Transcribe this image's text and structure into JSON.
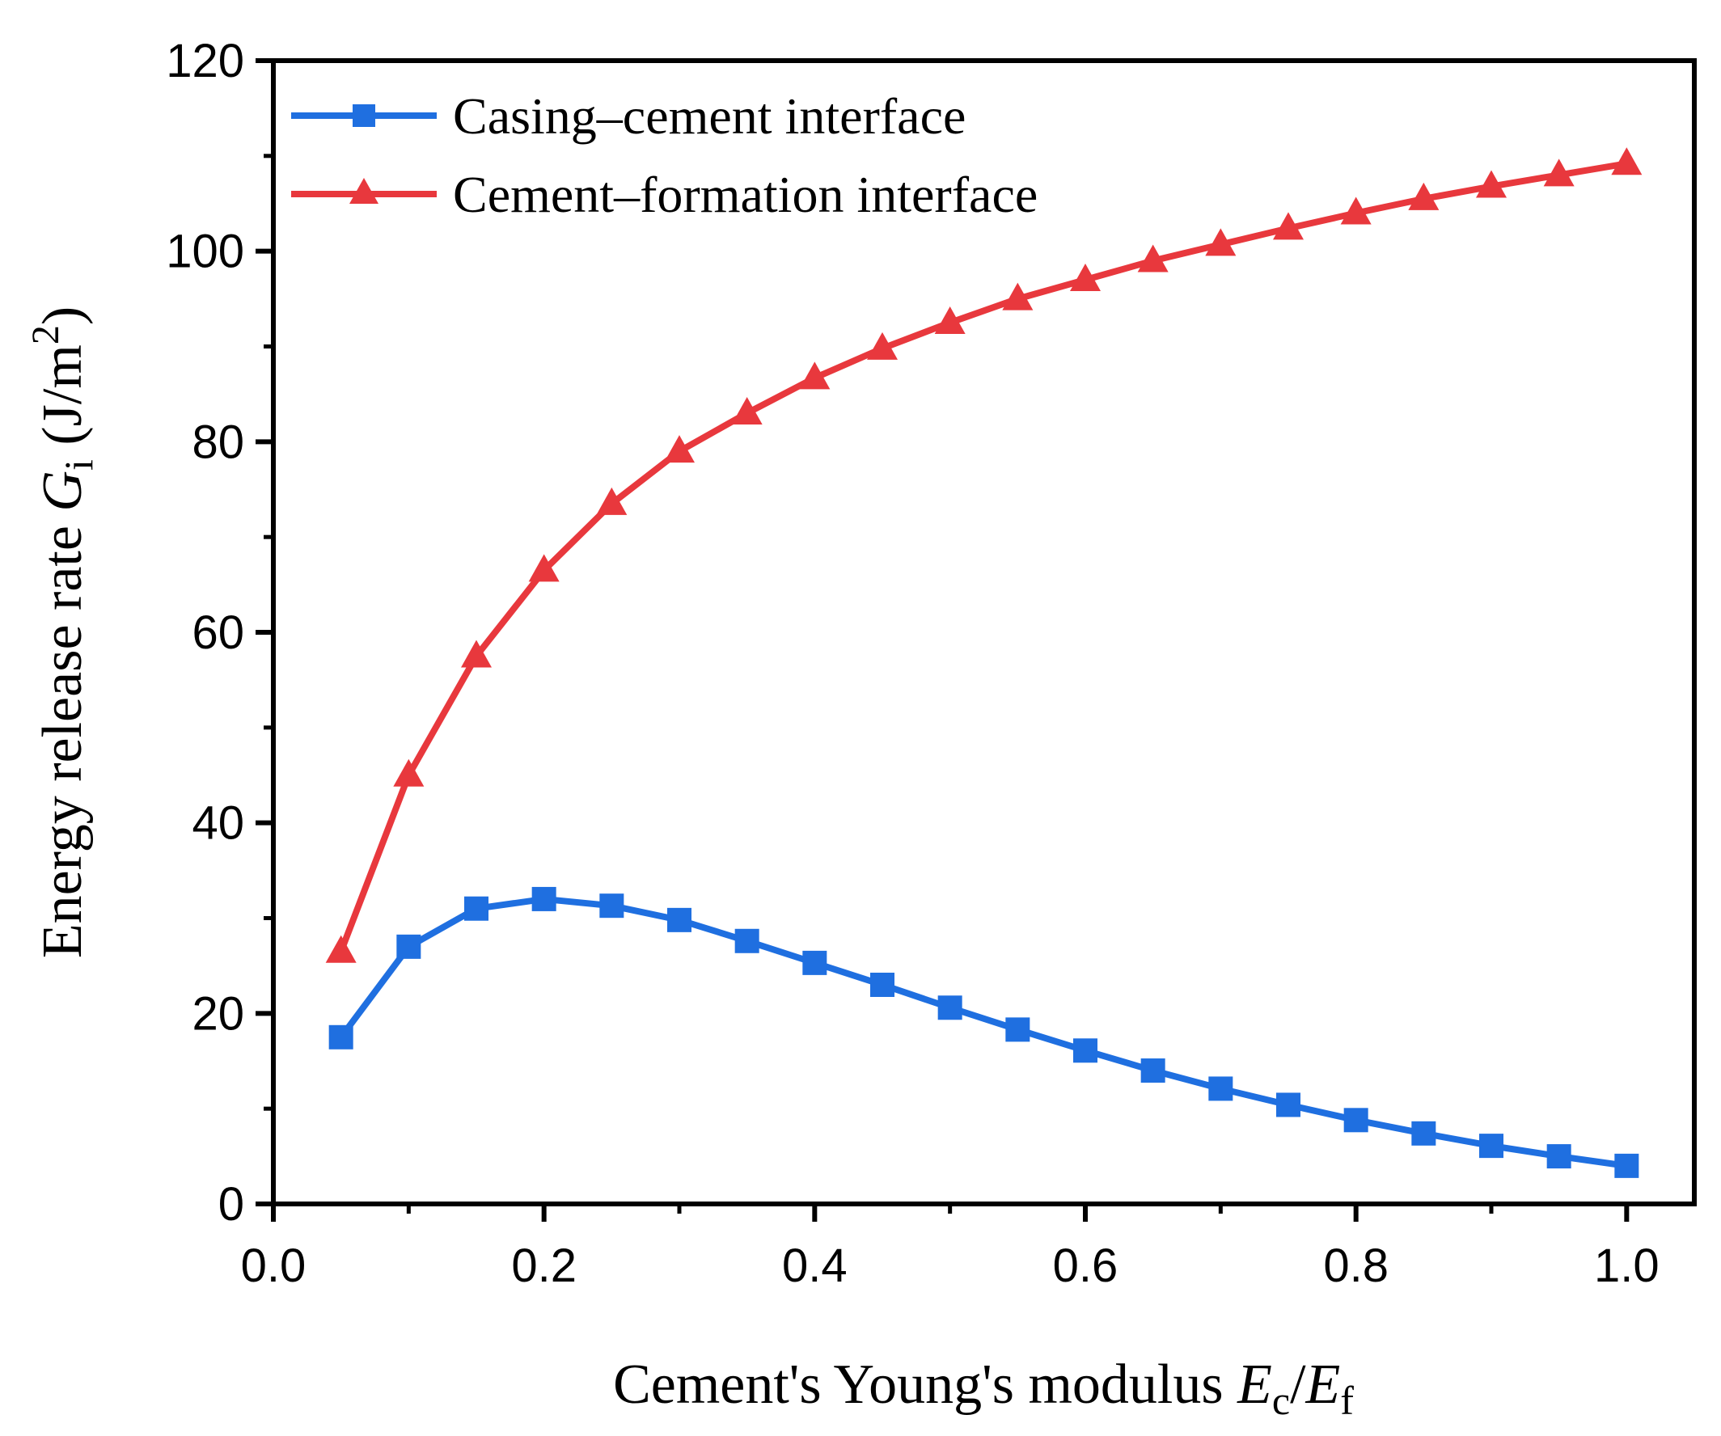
{
  "chart_data": {
    "type": "line",
    "title": "",
    "xlabel": {
      "text": "Cement's Young's modulus ",
      "var1": "E",
      "sub1": "c",
      "sep": "/",
      "var2": "E",
      "sub2": "f"
    },
    "ylabel": {
      "text": "Energy release rate ",
      "var": "G",
      "sub": "i",
      "unit_open": " (J/m",
      "sup": "2",
      "unit_close": ")"
    },
    "xlim": [
      0.0,
      1.05
    ],
    "ylim": [
      0,
      120
    ],
    "xticks": [
      "0.0",
      "0.2",
      "0.4",
      "0.6",
      "0.8",
      "1.0"
    ],
    "yticks": [
      "0",
      "20",
      "40",
      "60",
      "80",
      "100",
      "120"
    ],
    "grid": false,
    "legend_position": "top-left",
    "x": [
      0.05,
      0.1,
      0.15,
      0.2,
      0.25,
      0.3,
      0.35,
      0.4,
      0.45,
      0.5,
      0.55,
      0.6,
      0.65,
      0.7,
      0.75,
      0.8,
      0.85,
      0.9,
      0.95,
      1.0
    ],
    "series": [
      {
        "name": "Casing–cement interface",
        "color": "#1f6fe0",
        "marker": "square",
        "values": [
          17.5,
          27.0,
          31.0,
          32.0,
          31.3,
          29.8,
          27.6,
          25.3,
          23.0,
          20.6,
          18.3,
          16.1,
          14.0,
          12.1,
          10.4,
          8.8,
          7.4,
          6.1,
          5.0,
          4.0
        ]
      },
      {
        "name": "Cement–formation interface",
        "color": "#e8383d",
        "marker": "triangle",
        "values": [
          26.5,
          45.0,
          57.5,
          66.5,
          73.5,
          79.0,
          83.0,
          86.7,
          89.8,
          92.5,
          95.0,
          97.0,
          99.0,
          100.7,
          102.4,
          104.0,
          105.5,
          106.8,
          108.0,
          109.2
        ]
      }
    ]
  }
}
